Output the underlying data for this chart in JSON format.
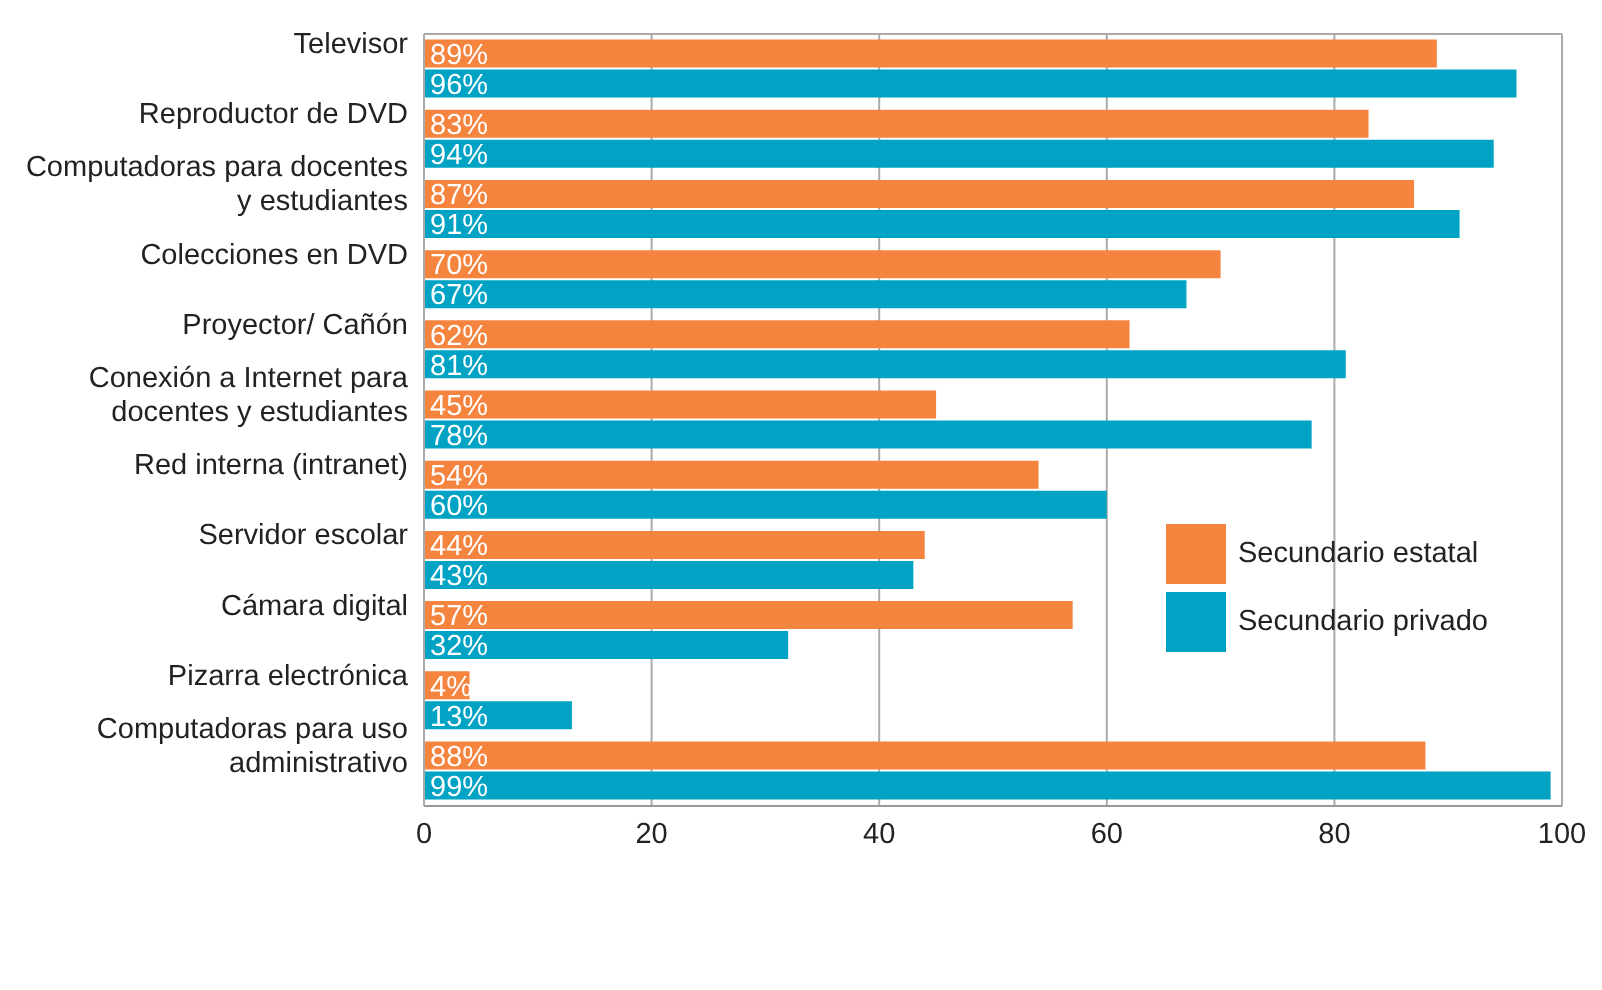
{
  "chart_data": {
    "type": "bar",
    "orientation": "horizontal",
    "categories": [
      "Televisor",
      "Reproductor de DVD",
      "Computadoras para docentes y estudiantes",
      "Colecciones en DVD",
      "Proyector/ Cañón",
      "Conexión a Internet para docentes y estudiantes",
      "Red interna (intranet)",
      "Servidor escolar",
      "Cámara digital",
      "Pizarra electrónica",
      "Computadoras para uso administrativo"
    ],
    "series": [
      {
        "name": "Secundario estatal",
        "color": "#f5843f",
        "values": [
          89,
          83,
          87,
          70,
          62,
          45,
          54,
          44,
          57,
          4,
          88
        ],
        "value_labels": [
          "89%",
          "83%",
          "87%",
          "70%",
          "62%",
          "45%",
          "54%",
          "44%",
          "57%",
          "4%",
          "88%"
        ]
      },
      {
        "name": "Secundario privado",
        "color": "#00a3c4",
        "values": [
          96,
          94,
          91,
          67,
          81,
          78,
          60,
          43,
          32,
          13,
          99
        ],
        "value_labels": [
          "96%",
          "94%",
          "91%",
          "67%",
          "81%",
          "78%",
          "60%",
          "43%",
          "32%",
          "13%",
          "99%"
        ]
      }
    ],
    "xlim": [
      0,
      100
    ],
    "xticks": [
      0,
      20,
      40,
      60,
      80,
      100
    ],
    "grid": "x",
    "legend": "bottom right"
  }
}
